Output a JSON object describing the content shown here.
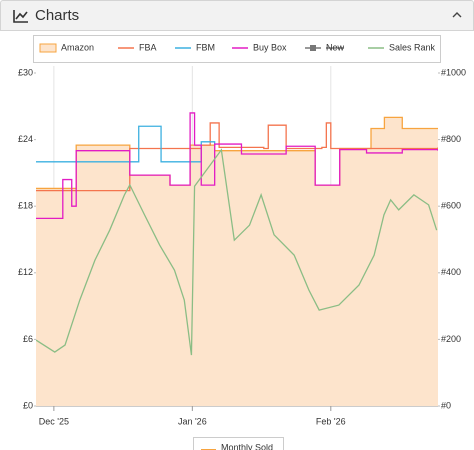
{
  "header": {
    "title": "Charts"
  },
  "chart_data": {
    "type": "line",
    "xlim": [
      -4,
      86
    ],
    "xticks": [
      {
        "value": 0,
        "label": "Dec '25"
      },
      {
        "value": 31,
        "label": "Jan '26"
      },
      {
        "value": 62,
        "label": "Feb '26"
      }
    ],
    "ylim": [
      0,
      30
    ],
    "yticks": [
      {
        "value": 0,
        "label": "£0"
      },
      {
        "value": 6,
        "label": "£6"
      },
      {
        "value": 12,
        "label": "£12"
      },
      {
        "value": 18,
        "label": "£18"
      },
      {
        "value": 24,
        "label": "£24"
      },
      {
        "value": 30,
        "label": "£30"
      }
    ],
    "y2lim": [
      0,
      1000
    ],
    "y2ticks": [
      {
        "value": 0,
        "label": "#0"
      },
      {
        "value": 200,
        "label": "#200"
      },
      {
        "value": 400,
        "label": "#400"
      },
      {
        "value": 600,
        "label": "#600"
      },
      {
        "value": 800,
        "label": "#800"
      },
      {
        "value": 1000,
        "label": "#1000"
      }
    ],
    "grid": "x",
    "series": [
      {
        "name": "Amazon",
        "color": "#f7a43f",
        "fill": "#fde4cc",
        "step": true,
        "x": [
          -4,
          5,
          17,
          26,
          30.5,
          36,
          58.5,
          64,
          71,
          74,
          78,
          86
        ],
        "values": [
          19.6,
          23.5,
          20.8,
          19.9,
          23.5,
          23.0,
          19.9,
          23.2,
          25.0,
          26.0,
          25.0,
          25.0
        ]
      },
      {
        "name": "FBA",
        "color": "#f4744e",
        "step": true,
        "x": [
          -4,
          17,
          33,
          35,
          37,
          47,
          48,
          52,
          60,
          61,
          62,
          86
        ],
        "values": [
          19.4,
          23.2,
          23.5,
          25.5,
          23.3,
          23.2,
          25.3,
          23.2,
          23.3,
          25.5,
          23.2,
          23.3
        ]
      },
      {
        "name": "FBM",
        "color": "#3cb0e0",
        "step": true,
        "x": [
          -4,
          19,
          24,
          33,
          36
        ],
        "values": [
          22.0,
          25.2,
          22.0,
          23.8,
          23.5
        ]
      },
      {
        "name": "Buy Box",
        "color": "#e21cc4",
        "step": true,
        "x": [
          -4,
          2,
          4,
          5,
          17,
          26,
          30.5,
          31.5,
          33,
          36,
          42,
          50,
          52,
          58.5,
          64,
          70,
          78,
          86
        ],
        "values": [
          16.9,
          20.4,
          18.0,
          23.0,
          20.8,
          19.9,
          26.4,
          23.5,
          19.9,
          23.6,
          22.7,
          22.7,
          23.4,
          19.9,
          23.1,
          22.8,
          23.1,
          23.0
        ]
      },
      {
        "name": "New",
        "color": "#777777",
        "hidden": true,
        "step": true,
        "x": [],
        "values": []
      },
      {
        "name": "Sales Rank",
        "color": "#8bbd85",
        "axis": "y2",
        "step": false,
        "x": [
          -4,
          0.2,
          2.5,
          5.8,
          9.2,
          12.5,
          15.8,
          17,
          20.3,
          23.7,
          27,
          29.2,
          30.8,
          31.5,
          37.5,
          40.4,
          43.8,
          46.4,
          49.3,
          53.8,
          57.1,
          59.4,
          63.8,
          68.3,
          71.7,
          73.9,
          75.4,
          77.2,
          80.6,
          83.9,
          85.7
        ],
        "values": [
          198,
          162,
          183,
          318,
          438,
          528,
          634,
          664,
          574,
          483,
          408,
          318,
          153,
          660,
          769,
          498,
          543,
          634,
          514,
          453,
          348,
          288,
          303,
          363,
          453,
          574,
          619,
          589,
          634,
          604,
          528
        ]
      }
    ],
    "secondary_legend": [
      "Monthly Sold"
    ]
  }
}
